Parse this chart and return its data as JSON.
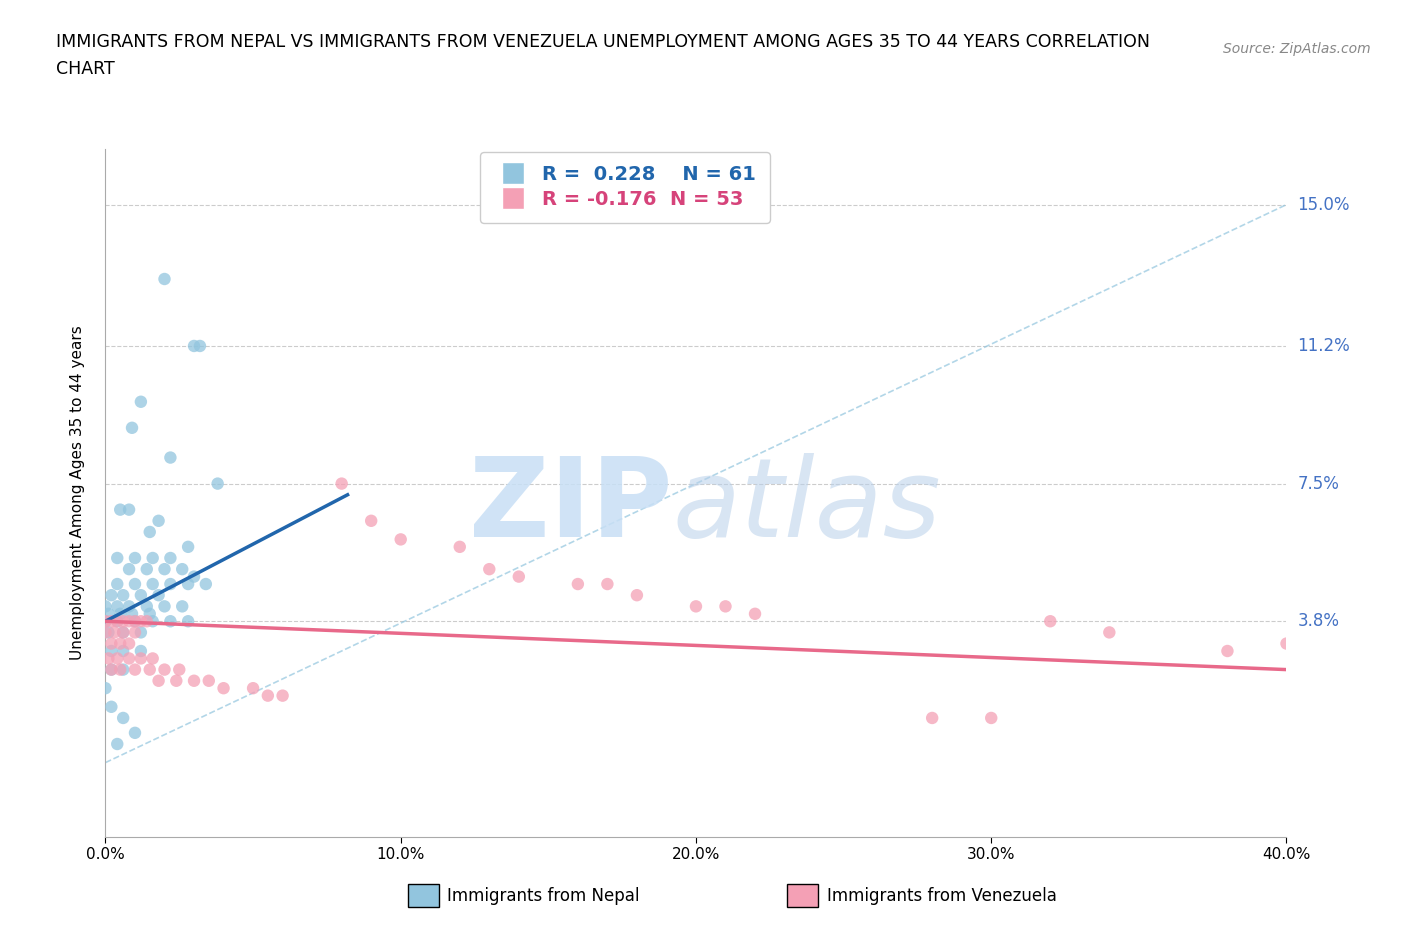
{
  "title_line1": "IMMIGRANTS FROM NEPAL VS IMMIGRANTS FROM VENEZUELA UNEMPLOYMENT AMONG AGES 35 TO 44 YEARS CORRELATION",
  "title_line2": "CHART",
  "source": "Source: ZipAtlas.com",
  "ylabel": "Unemployment Among Ages 35 to 44 years",
  "xlim": [
    0.0,
    0.4
  ],
  "ylim": [
    -0.02,
    0.165
  ],
  "yticks": [
    0.038,
    0.075,
    0.112,
    0.15
  ],
  "ytick_labels": [
    "3.8%",
    "7.5%",
    "11.2%",
    "15.0%"
  ],
  "xticks": [
    0.0,
    0.1,
    0.2,
    0.3,
    0.4
  ],
  "xtick_labels": [
    "0.0%",
    "10.0%",
    "20.0%",
    "30.0%",
    "40.0%"
  ],
  "nepal_color": "#92c5de",
  "venezuela_color": "#f4a0b5",
  "nepal_R": 0.228,
  "nepal_N": 61,
  "venezuela_R": -0.176,
  "venezuela_N": 53,
  "nepal_line_color": "#2166ac",
  "venezuela_line_color": "#e8698a",
  "diagonal_color": "#92c5de",
  "legend_nepal": "Immigrants from Nepal",
  "legend_venezuela": "Immigrants from Venezuela",
  "nepal_scatter": [
    [
      0.02,
      0.13
    ],
    [
      0.03,
      0.112
    ],
    [
      0.032,
      0.112
    ],
    [
      0.012,
      0.097
    ],
    [
      0.009,
      0.09
    ],
    [
      0.022,
      0.082
    ],
    [
      0.038,
      0.075
    ],
    [
      0.005,
      0.068
    ],
    [
      0.008,
      0.068
    ],
    [
      0.018,
      0.065
    ],
    [
      0.015,
      0.062
    ],
    [
      0.028,
      0.058
    ],
    [
      0.004,
      0.055
    ],
    [
      0.01,
      0.055
    ],
    [
      0.016,
      0.055
    ],
    [
      0.022,
      0.055
    ],
    [
      0.008,
      0.052
    ],
    [
      0.014,
      0.052
    ],
    [
      0.02,
      0.052
    ],
    [
      0.026,
      0.052
    ],
    [
      0.03,
      0.05
    ],
    [
      0.004,
      0.048
    ],
    [
      0.01,
      0.048
    ],
    [
      0.016,
      0.048
    ],
    [
      0.022,
      0.048
    ],
    [
      0.028,
      0.048
    ],
    [
      0.034,
      0.048
    ],
    [
      0.002,
      0.045
    ],
    [
      0.006,
      0.045
    ],
    [
      0.012,
      0.045
    ],
    [
      0.018,
      0.045
    ],
    [
      0.0,
      0.042
    ],
    [
      0.004,
      0.042
    ],
    [
      0.008,
      0.042
    ],
    [
      0.014,
      0.042
    ],
    [
      0.02,
      0.042
    ],
    [
      0.026,
      0.042
    ],
    [
      0.001,
      0.04
    ],
    [
      0.005,
      0.04
    ],
    [
      0.009,
      0.04
    ],
    [
      0.015,
      0.04
    ],
    [
      0.0,
      0.038
    ],
    [
      0.004,
      0.038
    ],
    [
      0.01,
      0.038
    ],
    [
      0.016,
      0.038
    ],
    [
      0.022,
      0.038
    ],
    [
      0.028,
      0.038
    ],
    [
      0.001,
      0.035
    ],
    [
      0.006,
      0.035
    ],
    [
      0.012,
      0.035
    ],
    [
      0.002,
      0.03
    ],
    [
      0.006,
      0.03
    ],
    [
      0.012,
      0.03
    ],
    [
      0.002,
      0.025
    ],
    [
      0.006,
      0.025
    ],
    [
      0.0,
      0.02
    ],
    [
      0.002,
      0.015
    ],
    [
      0.006,
      0.012
    ],
    [
      0.01,
      0.008
    ],
    [
      0.004,
      0.005
    ]
  ],
  "venezuela_scatter": [
    [
      0.0,
      0.038
    ],
    [
      0.002,
      0.038
    ],
    [
      0.004,
      0.038
    ],
    [
      0.006,
      0.038
    ],
    [
      0.008,
      0.038
    ],
    [
      0.01,
      0.038
    ],
    [
      0.012,
      0.038
    ],
    [
      0.014,
      0.038
    ],
    [
      0.0,
      0.035
    ],
    [
      0.003,
      0.035
    ],
    [
      0.006,
      0.035
    ],
    [
      0.01,
      0.035
    ],
    [
      0.002,
      0.032
    ],
    [
      0.005,
      0.032
    ],
    [
      0.008,
      0.032
    ],
    [
      0.001,
      0.028
    ],
    [
      0.004,
      0.028
    ],
    [
      0.008,
      0.028
    ],
    [
      0.012,
      0.028
    ],
    [
      0.016,
      0.028
    ],
    [
      0.002,
      0.025
    ],
    [
      0.005,
      0.025
    ],
    [
      0.01,
      0.025
    ],
    [
      0.015,
      0.025
    ],
    [
      0.02,
      0.025
    ],
    [
      0.025,
      0.025
    ],
    [
      0.018,
      0.022
    ],
    [
      0.024,
      0.022
    ],
    [
      0.03,
      0.022
    ],
    [
      0.035,
      0.022
    ],
    [
      0.04,
      0.02
    ],
    [
      0.05,
      0.02
    ],
    [
      0.055,
      0.018
    ],
    [
      0.06,
      0.018
    ],
    [
      0.08,
      0.075
    ],
    [
      0.09,
      0.065
    ],
    [
      0.1,
      0.06
    ],
    [
      0.12,
      0.058
    ],
    [
      0.13,
      0.052
    ],
    [
      0.14,
      0.05
    ],
    [
      0.16,
      0.048
    ],
    [
      0.17,
      0.048
    ],
    [
      0.18,
      0.045
    ],
    [
      0.2,
      0.042
    ],
    [
      0.21,
      0.042
    ],
    [
      0.22,
      0.04
    ],
    [
      0.32,
      0.038
    ],
    [
      0.34,
      0.035
    ],
    [
      0.4,
      0.032
    ],
    [
      0.38,
      0.03
    ],
    [
      0.28,
      0.012
    ],
    [
      0.3,
      0.012
    ]
  ],
  "nepal_line_x": [
    0.0,
    0.082
  ],
  "nepal_line_y": [
    0.038,
    0.072
  ],
  "venezuela_line_x": [
    0.0,
    0.4
  ],
  "venezuela_line_y": [
    0.038,
    0.025
  ]
}
